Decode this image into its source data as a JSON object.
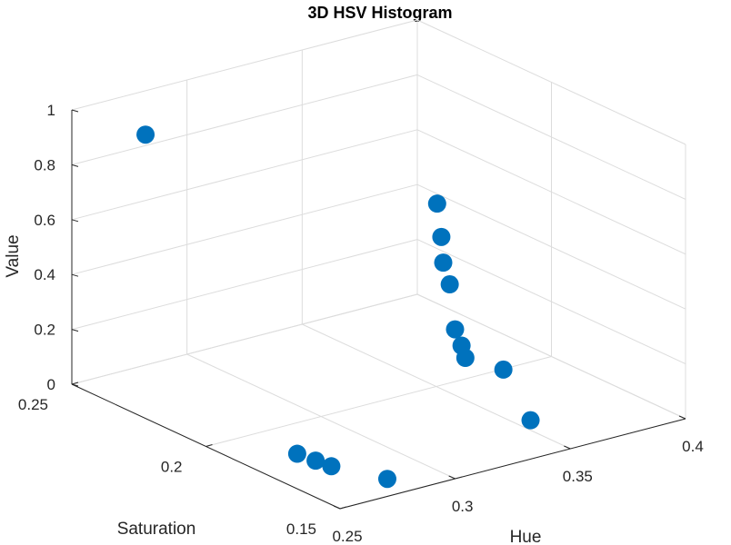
{
  "chart_data": {
    "type": "scatter",
    "title": "3D HSV Histogram",
    "xlabel": "Hue",
    "ylabel": "Saturation",
    "zlabel": "Value",
    "xlim": [
      0.25,
      0.4
    ],
    "ylim": [
      0.15,
      0.25
    ],
    "zlim": [
      0,
      1
    ],
    "x_ticks": [
      "0.25",
      "0.3",
      "0.35",
      "0.4"
    ],
    "y_ticks": [
      "0.15",
      "0.2",
      "0.25"
    ],
    "z_ticks": [
      "0",
      "0.2",
      "0.4",
      "0.6",
      "0.8",
      "1"
    ],
    "grid": true,
    "marker_color": "#0072BD",
    "points": [
      {
        "x": 0.282,
        "y": 0.25,
        "z": 0.84
      },
      {
        "x": 0.376,
        "y": 0.222,
        "z": 0.51
      },
      {
        "x": 0.372,
        "y": 0.217,
        "z": 0.42
      },
      {
        "x": 0.367,
        "y": 0.212,
        "z": 0.36
      },
      {
        "x": 0.364,
        "y": 0.207,
        "z": 0.31
      },
      {
        "x": 0.35,
        "y": 0.193,
        "z": 0.24
      },
      {
        "x": 0.347,
        "y": 0.188,
        "z": 0.21
      },
      {
        "x": 0.344,
        "y": 0.184,
        "z": 0.19
      },
      {
        "x": 0.364,
        "y": 0.187,
        "z": 0.09
      },
      {
        "x": 0.356,
        "y": 0.17,
        "z": 0.0
      },
      {
        "x": 0.271,
        "y": 0.184,
        "z": 0.0
      },
      {
        "x": 0.272,
        "y": 0.178,
        "z": 0.0
      },
      {
        "x": 0.273,
        "y": 0.173,
        "z": 0.0
      },
      {
        "x": 0.281,
        "y": 0.159,
        "z": 0.0
      }
    ]
  }
}
